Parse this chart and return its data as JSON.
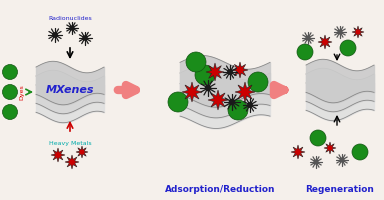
{
  "bg_color": "#f5f0eb",
  "section1_label": "MXenes",
  "heavy_metals_label": "Heavy Metals",
  "dyes_label": "Dyes",
  "radionuclides_label": "Radionuclides",
  "section2_label": "Adsorption/Reduction",
  "section3_label": "Regeneration",
  "arrow_color": "#f08080",
  "green_color": "#1a8c1a",
  "red_star_color": "#cc0000",
  "dark_color": "#1a1a1a",
  "blue_label": "#2222cc",
  "cyan_label": "#00aaaa",
  "green_label": "#00aa00",
  "red_label": "#dd0000"
}
